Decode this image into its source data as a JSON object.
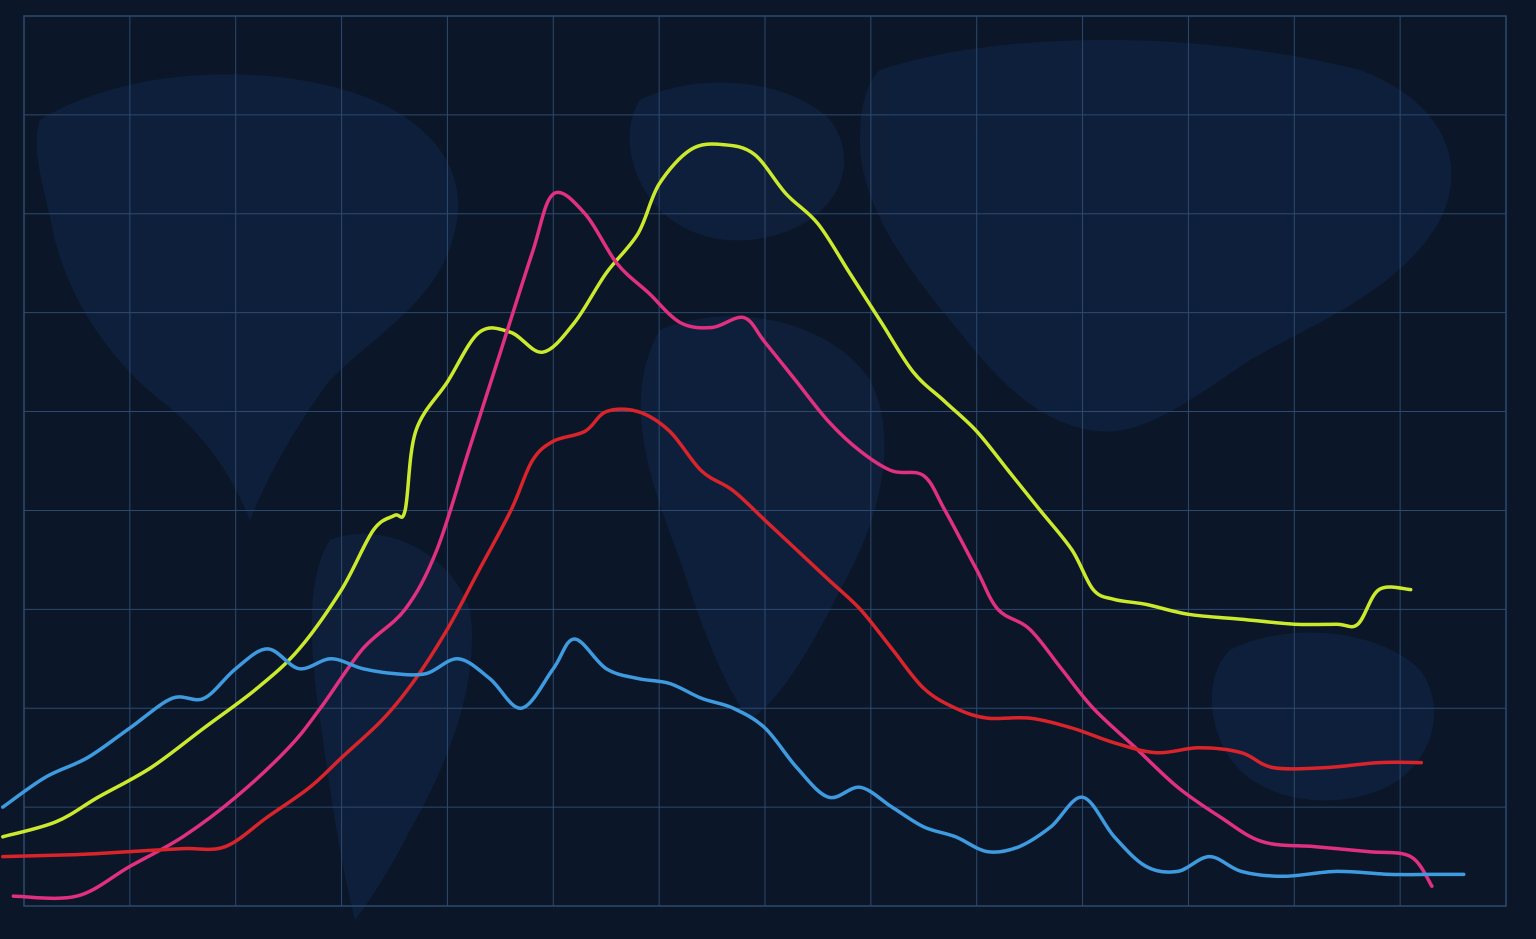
{
  "chart_data": {
    "type": "line",
    "title": "",
    "xlabel": "",
    "ylabel": "",
    "xlim": [
      0,
      14
    ],
    "ylim": [
      0,
      9
    ],
    "grid": true,
    "legend": "none",
    "background_color": "#0b1628",
    "grid_color": "#2d4a6e",
    "series": [
      {
        "color": "#cbea2e",
        "points": [
          [
            -0.2,
            0.7
          ],
          [
            0.3,
            0.85
          ],
          [
            0.7,
            1.1
          ],
          [
            1.2,
            1.4
          ],
          [
            1.7,
            1.8
          ],
          [
            2.2,
            2.2
          ],
          [
            2.6,
            2.6
          ],
          [
            3.0,
            3.2
          ],
          [
            3.3,
            3.8
          ],
          [
            3.5,
            3.95
          ],
          [
            3.6,
            4.0
          ],
          [
            3.7,
            4.8
          ],
          [
            4.0,
            5.3
          ],
          [
            4.3,
            5.8
          ],
          [
            4.6,
            5.8
          ],
          [
            4.9,
            5.6
          ],
          [
            5.2,
            5.9
          ],
          [
            5.5,
            6.4
          ],
          [
            5.8,
            6.8
          ],
          [
            6.0,
            7.3
          ],
          [
            6.3,
            7.65
          ],
          [
            6.6,
            7.7
          ],
          [
            6.9,
            7.6
          ],
          [
            7.2,
            7.2
          ],
          [
            7.5,
            6.9
          ],
          [
            7.8,
            6.4
          ],
          [
            8.1,
            5.9
          ],
          [
            8.4,
            5.4
          ],
          [
            8.7,
            5.1
          ],
          [
            9.0,
            4.8
          ],
          [
            9.3,
            4.4
          ],
          [
            9.6,
            4.0
          ],
          [
            9.9,
            3.6
          ],
          [
            10.1,
            3.2
          ],
          [
            10.3,
            3.1
          ],
          [
            10.6,
            3.05
          ],
          [
            11.0,
            2.95
          ],
          [
            11.5,
            2.9
          ],
          [
            12.0,
            2.85
          ],
          [
            12.4,
            2.85
          ],
          [
            12.6,
            2.85
          ],
          [
            12.8,
            3.2
          ],
          [
            13.1,
            3.2
          ]
        ]
      },
      {
        "color": "#e0307f",
        "points": [
          [
            -0.1,
            0.1
          ],
          [
            0.5,
            0.1
          ],
          [
            1.0,
            0.4
          ],
          [
            1.5,
            0.7
          ],
          [
            2.0,
            1.1
          ],
          [
            2.5,
            1.6
          ],
          [
            2.8,
            2.0
          ],
          [
            3.2,
            2.6
          ],
          [
            3.6,
            3.0
          ],
          [
            3.9,
            3.6
          ],
          [
            4.2,
            4.6
          ],
          [
            4.5,
            5.6
          ],
          [
            4.8,
            6.6
          ],
          [
            5.0,
            7.2
          ],
          [
            5.3,
            7.0
          ],
          [
            5.6,
            6.5
          ],
          [
            5.9,
            6.2
          ],
          [
            6.2,
            5.9
          ],
          [
            6.5,
            5.85
          ],
          [
            6.8,
            5.95
          ],
          [
            7.0,
            5.7
          ],
          [
            7.3,
            5.3
          ],
          [
            7.6,
            4.9
          ],
          [
            7.9,
            4.6
          ],
          [
            8.2,
            4.4
          ],
          [
            8.5,
            4.35
          ],
          [
            8.7,
            4.0
          ],
          [
            9.0,
            3.4
          ],
          [
            9.2,
            3.0
          ],
          [
            9.5,
            2.8
          ],
          [
            9.8,
            2.4
          ],
          [
            10.1,
            2.0
          ],
          [
            10.5,
            1.6
          ],
          [
            10.9,
            1.2
          ],
          [
            11.3,
            0.9
          ],
          [
            11.7,
            0.65
          ],
          [
            12.2,
            0.6
          ],
          [
            12.7,
            0.55
          ],
          [
            13.1,
            0.5
          ],
          [
            13.3,
            0.2
          ]
        ]
      },
      {
        "color": "#d9242c",
        "points": [
          [
            -0.2,
            0.5
          ],
          [
            0.5,
            0.52
          ],
          [
            1.0,
            0.55
          ],
          [
            1.5,
            0.58
          ],
          [
            1.9,
            0.6
          ],
          [
            2.3,
            0.9
          ],
          [
            2.7,
            1.2
          ],
          [
            3.0,
            1.5
          ],
          [
            3.4,
            1.9
          ],
          [
            3.7,
            2.3
          ],
          [
            4.0,
            2.8
          ],
          [
            4.3,
            3.4
          ],
          [
            4.6,
            4.0
          ],
          [
            4.8,
            4.5
          ],
          [
            5.0,
            4.7
          ],
          [
            5.3,
            4.8
          ],
          [
            5.5,
            5.0
          ],
          [
            5.8,
            5.0
          ],
          [
            6.1,
            4.8
          ],
          [
            6.4,
            4.4
          ],
          [
            6.7,
            4.2
          ],
          [
            7.0,
            3.9
          ],
          [
            7.3,
            3.6
          ],
          [
            7.6,
            3.3
          ],
          [
            7.9,
            3.0
          ],
          [
            8.2,
            2.6
          ],
          [
            8.5,
            2.2
          ],
          [
            8.8,
            2.0
          ],
          [
            9.1,
            1.9
          ],
          [
            9.5,
            1.9
          ],
          [
            9.9,
            1.8
          ],
          [
            10.3,
            1.65
          ],
          [
            10.7,
            1.55
          ],
          [
            11.1,
            1.6
          ],
          [
            11.5,
            1.55
          ],
          [
            11.8,
            1.4
          ],
          [
            12.3,
            1.4
          ],
          [
            12.8,
            1.45
          ],
          [
            13.2,
            1.45
          ]
        ]
      },
      {
        "color": "#3e9be0",
        "points": [
          [
            -0.2,
            1.0
          ],
          [
            0.2,
            1.3
          ],
          [
            0.6,
            1.5
          ],
          [
            1.0,
            1.8
          ],
          [
            1.4,
            2.1
          ],
          [
            1.7,
            2.1
          ],
          [
            2.0,
            2.4
          ],
          [
            2.3,
            2.6
          ],
          [
            2.6,
            2.4
          ],
          [
            2.9,
            2.5
          ],
          [
            3.2,
            2.4
          ],
          [
            3.5,
            2.35
          ],
          [
            3.8,
            2.35
          ],
          [
            4.1,
            2.5
          ],
          [
            4.4,
            2.3
          ],
          [
            4.7,
            2.0
          ],
          [
            5.0,
            2.4
          ],
          [
            5.2,
            2.7
          ],
          [
            5.5,
            2.4
          ],
          [
            5.8,
            2.3
          ],
          [
            6.1,
            2.25
          ],
          [
            6.4,
            2.1
          ],
          [
            6.7,
            2.0
          ],
          [
            7.0,
            1.8
          ],
          [
            7.3,
            1.4
          ],
          [
            7.6,
            1.1
          ],
          [
            7.9,
            1.2
          ],
          [
            8.2,
            1.0
          ],
          [
            8.5,
            0.8
          ],
          [
            8.8,
            0.7
          ],
          [
            9.1,
            0.55
          ],
          [
            9.4,
            0.6
          ],
          [
            9.7,
            0.8
          ],
          [
            10.0,
            1.1
          ],
          [
            10.3,
            0.7
          ],
          [
            10.6,
            0.4
          ],
          [
            10.9,
            0.35
          ],
          [
            11.2,
            0.5
          ],
          [
            11.5,
            0.35
          ],
          [
            11.9,
            0.3
          ],
          [
            12.4,
            0.35
          ],
          [
            12.9,
            0.32
          ],
          [
            13.3,
            0.32
          ],
          [
            13.6,
            0.32
          ]
        ]
      }
    ]
  }
}
